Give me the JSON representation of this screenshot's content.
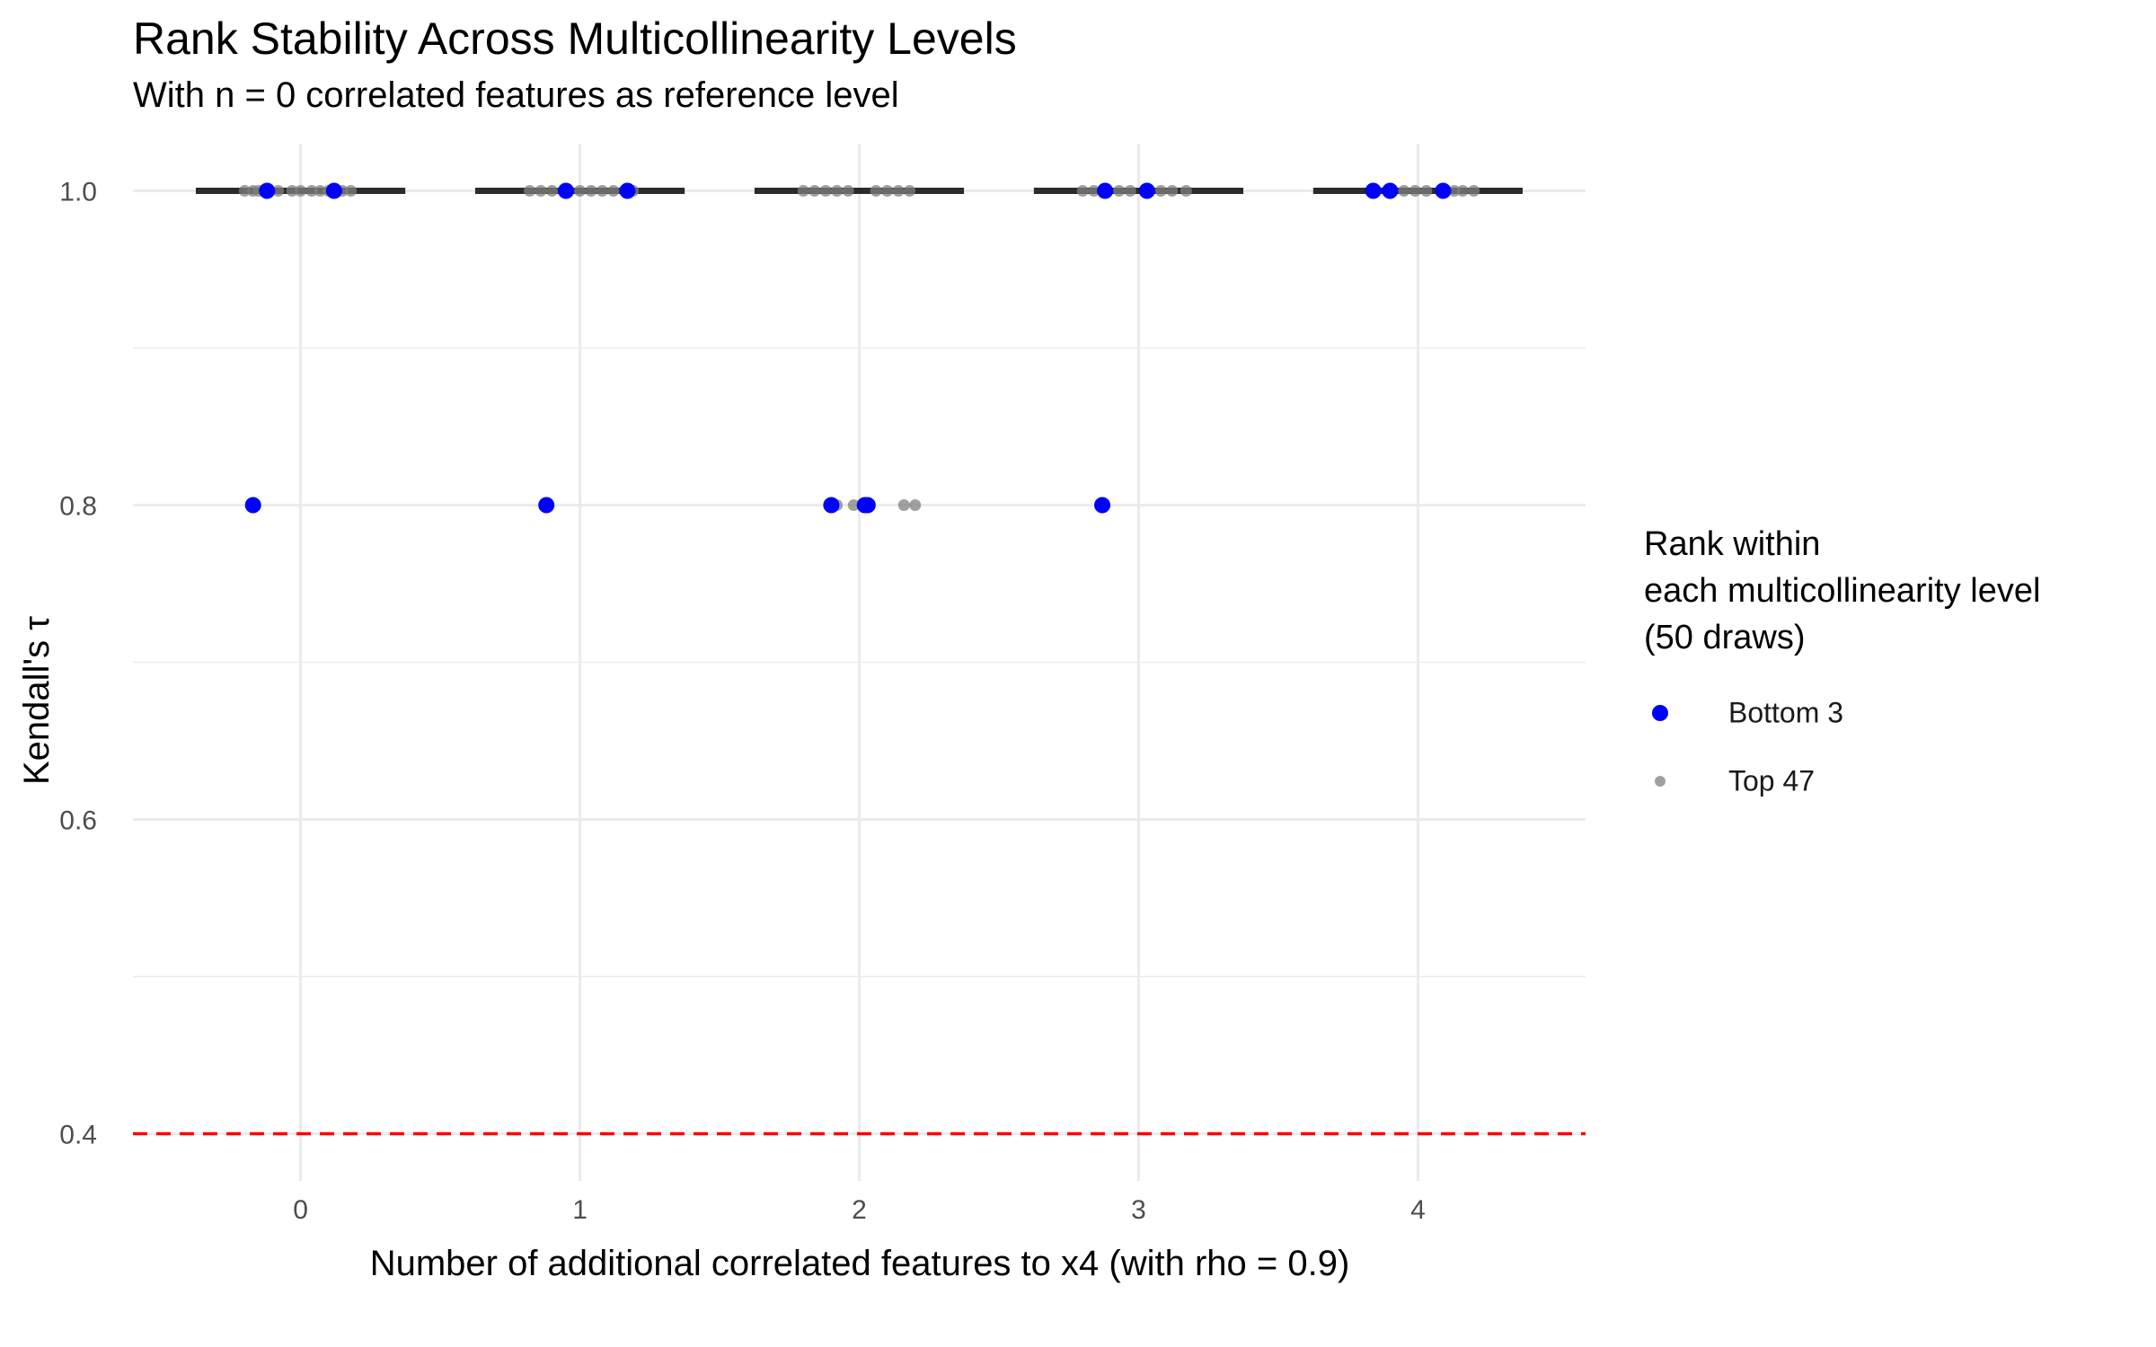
{
  "chart_data": {
    "type": "scatter",
    "title": "Rank Stability Across Multicollinearity Levels",
    "subtitle": "With n = 0 correlated features as reference level",
    "xlabel": "Number of additional correlated features to x4 (with rho = 0.9)",
    "ylabel": "Kendall's τ",
    "xlim": [
      -0.6,
      4.6
    ],
    "ylim": [
      0.37,
      1.03
    ],
    "x_ticks": [
      0,
      1,
      2,
      3,
      4
    ],
    "x_tick_labels": [
      "0",
      "1",
      "2",
      "3",
      "4"
    ],
    "y_ticks": [
      0.4,
      0.6,
      0.8,
      1.0
    ],
    "y_tick_labels": [
      "0.4",
      "0.6",
      "0.8",
      "1.0"
    ],
    "reference_line": {
      "y": 0.4,
      "color": "#ff0000",
      "style": "dashed"
    },
    "median_bars": [
      {
        "x": 0,
        "y": 1.0
      },
      {
        "x": 1,
        "y": 1.0
      },
      {
        "x": 2,
        "y": 1.0
      },
      {
        "x": 3,
        "y": 1.0
      },
      {
        "x": 4,
        "y": 1.0
      }
    ],
    "legend": {
      "title_lines": [
        "Rank within",
        "each multicollinearity level",
        "(50 draws)"
      ],
      "position": "right"
    },
    "grid": true,
    "series": [
      {
        "name": "Bottom 3",
        "color": "#0000ff",
        "points": [
          {
            "x": -0.12,
            "y": 1.0
          },
          {
            "x": 0.12,
            "y": 1.0
          },
          {
            "x": -0.17,
            "y": 0.8
          },
          {
            "x": 0.95,
            "y": 1.0
          },
          {
            "x": 1.17,
            "y": 1.0
          },
          {
            "x": 0.88,
            "y": 0.8
          },
          {
            "x": 1.9,
            "y": 0.8
          },
          {
            "x": 2.02,
            "y": 0.8
          },
          {
            "x": 2.03,
            "y": 0.8
          },
          {
            "x": 2.88,
            "y": 1.0
          },
          {
            "x": 3.03,
            "y": 1.0
          },
          {
            "x": 2.87,
            "y": 0.8
          },
          {
            "x": 3.84,
            "y": 1.0
          },
          {
            "x": 3.9,
            "y": 1.0
          },
          {
            "x": 4.09,
            "y": 1.0
          }
        ]
      },
      {
        "name": "Top 47",
        "color": "#808080",
        "points": [
          {
            "x": -0.2,
            "y": 1.0
          },
          {
            "x": -0.17,
            "y": 1.0
          },
          {
            "x": -0.15,
            "y": 1.0
          },
          {
            "x": -0.08,
            "y": 1.0
          },
          {
            "x": -0.03,
            "y": 1.0
          },
          {
            "x": 0.0,
            "y": 1.0
          },
          {
            "x": 0.04,
            "y": 1.0
          },
          {
            "x": 0.07,
            "y": 1.0
          },
          {
            "x": 0.1,
            "y": 1.0
          },
          {
            "x": 0.15,
            "y": 1.0
          },
          {
            "x": 0.18,
            "y": 1.0
          },
          {
            "x": 0.82,
            "y": 1.0
          },
          {
            "x": 0.86,
            "y": 1.0
          },
          {
            "x": 0.9,
            "y": 1.0
          },
          {
            "x": 1.0,
            "y": 1.0
          },
          {
            "x": 1.04,
            "y": 1.0
          },
          {
            "x": 1.08,
            "y": 1.0
          },
          {
            "x": 1.12,
            "y": 1.0
          },
          {
            "x": 1.19,
            "y": 1.0
          },
          {
            "x": 1.8,
            "y": 1.0
          },
          {
            "x": 1.84,
            "y": 1.0
          },
          {
            "x": 1.88,
            "y": 1.0
          },
          {
            "x": 1.92,
            "y": 1.0
          },
          {
            "x": 1.96,
            "y": 1.0
          },
          {
            "x": 2.06,
            "y": 1.0
          },
          {
            "x": 2.1,
            "y": 1.0
          },
          {
            "x": 2.14,
            "y": 1.0
          },
          {
            "x": 2.18,
            "y": 1.0
          },
          {
            "x": 1.92,
            "y": 0.8
          },
          {
            "x": 1.98,
            "y": 0.8
          },
          {
            "x": 2.16,
            "y": 0.8
          },
          {
            "x": 2.2,
            "y": 0.8
          },
          {
            "x": 2.8,
            "y": 1.0
          },
          {
            "x": 2.84,
            "y": 1.0
          },
          {
            "x": 2.93,
            "y": 1.0
          },
          {
            "x": 2.97,
            "y": 1.0
          },
          {
            "x": 3.08,
            "y": 1.0
          },
          {
            "x": 3.12,
            "y": 1.0
          },
          {
            "x": 3.17,
            "y": 1.0
          },
          {
            "x": 3.95,
            "y": 1.0
          },
          {
            "x": 3.99,
            "y": 1.0
          },
          {
            "x": 4.03,
            "y": 1.0
          },
          {
            "x": 4.13,
            "y": 1.0
          },
          {
            "x": 4.16,
            "y": 1.0
          },
          {
            "x": 4.2,
            "y": 1.0
          }
        ]
      }
    ]
  }
}
